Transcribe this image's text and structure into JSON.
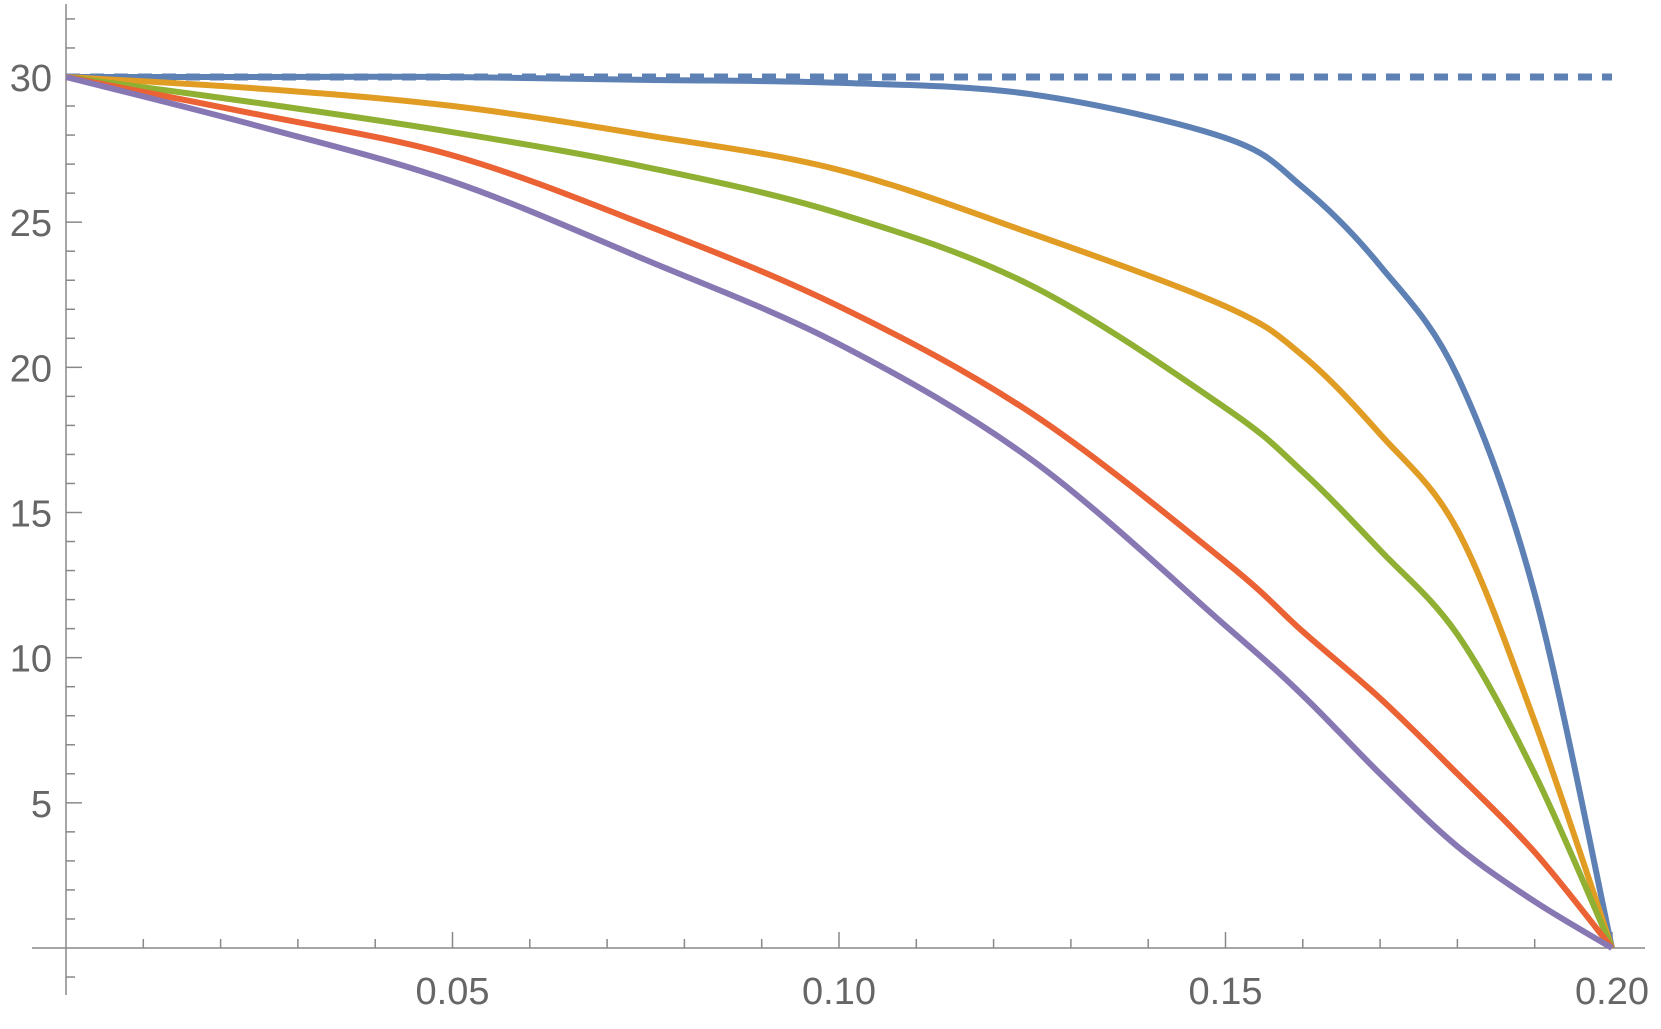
{
  "chart_data": {
    "type": "line",
    "title": "",
    "xlabel": "",
    "ylabel": "",
    "xlim": [
      0,
      0.205
    ],
    "ylim": [
      0,
      32
    ],
    "grid": false,
    "x_ticks": [
      "0.05",
      "0.10",
      "0.15",
      "0.20"
    ],
    "x_tick_values": [
      0.05,
      0.1,
      0.15,
      0.2
    ],
    "y_ticks": [
      "5",
      "10",
      "15",
      "20",
      "25",
      "30"
    ],
    "y_tick_values": [
      5,
      10,
      15,
      20,
      25,
      30
    ],
    "x": [
      0,
      0.025,
      0.05,
      0.075,
      0.1,
      0.125,
      0.15,
      0.16,
      0.17,
      0.18,
      0.19,
      0.2
    ],
    "series": [
      {
        "color": "#5E81B5",
        "values": [
          30,
          30,
          30,
          29.9,
          29.8,
          29.4,
          27.9,
          26.2,
          23.5,
          19.7,
          12.2,
          0
        ]
      },
      {
        "color": "#E19C24",
        "values": [
          30,
          29.6,
          29.0,
          28.0,
          26.8,
          24.6,
          22.1,
          20.4,
          17.7,
          14.4,
          7.8,
          0
        ]
      },
      {
        "color": "#8FB032",
        "values": [
          30,
          29.1,
          28.1,
          26.9,
          25.3,
          22.8,
          18.6,
          16.4,
          13.7,
          10.8,
          6.0,
          0
        ]
      },
      {
        "color": "#EB6235",
        "values": [
          30,
          28.7,
          27.3,
          24.9,
          22.1,
          18.4,
          13.3,
          10.9,
          8.6,
          6.0,
          3.3,
          0
        ]
      },
      {
        "color": "#8778B3",
        "values": [
          30,
          28.3,
          26.4,
          23.7,
          20.8,
          16.8,
          11.1,
          8.7,
          6.0,
          3.5,
          1.6,
          0
        ]
      }
    ],
    "reference_line": {
      "y": 30,
      "style": "dashed",
      "color": "#5E81B5"
    }
  }
}
